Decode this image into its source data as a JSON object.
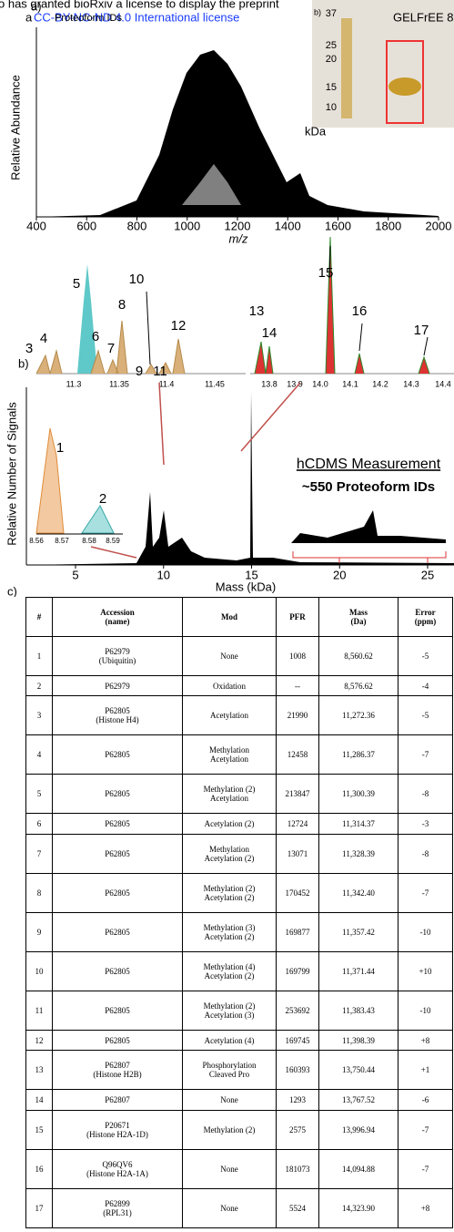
{
  "header": {
    "line1": "o has granted bioRxiv a license to display the preprint",
    "prefix": "a",
    "license": "CC-BY-NC-ND 4.0 International license",
    "suffix": ".",
    "overlap": "Proteoform IDs"
  },
  "panel_a": {
    "label": "a)",
    "y_label": "Relative Abundance",
    "x_label": "m/z",
    "x_ticks": [
      "400",
      "600",
      "800",
      "1000",
      "1200",
      "1400",
      "1600",
      "1800",
      "2000"
    ],
    "gel": {
      "markers": [
        "37",
        "25",
        "20",
        "15",
        "10"
      ],
      "unit": "kDa",
      "title": "GELFrEE 8%",
      "label": "b)"
    }
  },
  "panel_b": {
    "label": "b)",
    "peaks": [
      "1",
      "2",
      "3",
      "4",
      "5",
      "6",
      "7",
      "8",
      "9",
      "10",
      "11",
      "12",
      "13",
      "14",
      "15",
      "16",
      "17"
    ],
    "zoom1_ticks": [
      "11.3",
      "11.35",
      "11.4",
      "11.45"
    ],
    "zoom2_ticks": [
      "13.8",
      "13.9",
      "14.0",
      "14.1",
      "14.2",
      "14.3",
      "14.4"
    ],
    "inset_ticks": [
      "8.56",
      "8.57",
      "8.58",
      "8.59"
    ],
    "y_label": "Relative Number of Signals",
    "x_ticks": [
      "5",
      "10",
      "15",
      "20",
      "25"
    ],
    "x_label": "Mass (kDa)",
    "annotation": "hCDMS Measurement",
    "annotation2": "~550 Proteoform IDs"
  },
  "panel_c": {
    "label": "c)",
    "table": {
      "columns": [
        "#",
        "Accession\n(name)",
        "Mod",
        "PFR",
        "Mass\n(Da)",
        "Error\n(ppm)"
      ],
      "rows": [
        [
          "1",
          "P62979\n(Ubiquitin)",
          "None",
          "1008",
          "8,560.62",
          "-5"
        ],
        [
          "2",
          "P62979",
          "Oxidation",
          "--",
          "8,576.62",
          "-4"
        ],
        [
          "3",
          "P62805\n(Histone H4)",
          "Acetylation",
          "21990",
          "11,272.36",
          "-5"
        ],
        [
          "4",
          "P62805",
          "Methylation\nAcetylation",
          "12458",
          "11,286.37",
          "-7"
        ],
        [
          "5",
          "P62805",
          "Methylation (2)\nAcetylation",
          "213847",
          "11,300.39",
          "-8"
        ],
        [
          "6",
          "P62805",
          "Acetylation (2)",
          "12724",
          "11,314.37",
          "-3"
        ],
        [
          "7",
          "P62805",
          "Methylation\nAcetylation (2)",
          "13071",
          "11,328.39",
          "-8"
        ],
        [
          "8",
          "P62805",
          "Methylation (2)\nAcetylation (2)",
          "170452",
          "11,342.40",
          "-7"
        ],
        [
          "9",
          "P62805",
          "Methylation (3)\nAcetylation (2)",
          "169877",
          "11,357.42",
          "-10"
        ],
        [
          "10",
          "P62805",
          "Methylation (4)\nAcetylation (2)",
          "169799",
          "11,371.44",
          "+10"
        ],
        [
          "11",
          "P62805",
          "Methylation (2)\nAcetylation (3)",
          "253692",
          "11,383.43",
          "-10"
        ],
        [
          "12",
          "P62805",
          "Acetylation (4)",
          "169745",
          "11,398.39",
          "+8"
        ],
        [
          "13",
          "P62807\n(Histone H2B)",
          "Phosphorylation\nCleaved Pro",
          "160393",
          "13,750.44",
          "+1"
        ],
        [
          "14",
          "P62807",
          "None",
          "1293",
          "13,767.52",
          "-6"
        ],
        [
          "15",
          "P20671\n(Histone H2A-1D)",
          "Methylation (2)",
          "2575",
          "13,996.94",
          "-7"
        ],
        [
          "16",
          "Q96QV6\n(Histone H2A-1A)",
          "None",
          "181073",
          "14,094.88",
          "-7"
        ],
        [
          "17",
          "P62899\n(RPL31)",
          "None",
          "5524",
          "14,323.90",
          "+8"
        ]
      ]
    }
  }
}
